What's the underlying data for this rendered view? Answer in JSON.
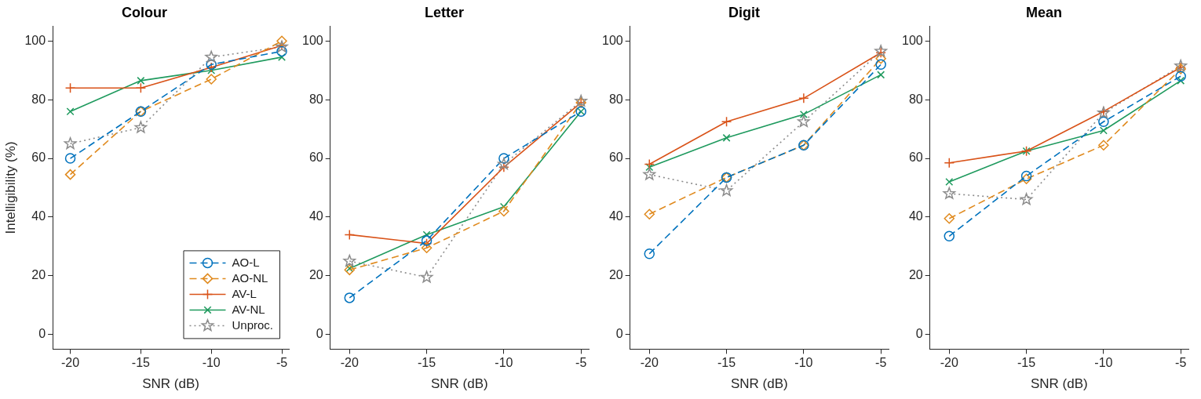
{
  "chart_data": [
    {
      "type": "line",
      "title": "Colour",
      "xlabel": "SNR (dB)",
      "ylabel": "Intelligibility (%)",
      "x": [
        -20,
        -15,
        -10,
        -5
      ],
      "xlim": [
        -21.25,
        -4.5
      ],
      "xticks": [
        -20,
        -15,
        -10,
        -5
      ],
      "ylim": [
        -5,
        105
      ],
      "yticks": [
        0,
        20,
        40,
        60,
        80,
        100
      ],
      "legend": "bottom right",
      "series": [
        {
          "name": "AO-L",
          "color": "#0072bd",
          "marker": "circle",
          "line_style": "dashed",
          "values": [
            60,
            76,
            92,
            96.5
          ]
        },
        {
          "name": "AO-NL",
          "color": "#e08a1e",
          "marker": "diamond",
          "line_style": "dashed",
          "values": [
            54.5,
            76,
            87,
            100
          ]
        },
        {
          "name": "AV-L",
          "color": "#d95319",
          "marker": "cross",
          "line_style": "solid",
          "values": [
            84,
            84,
            91,
            98.5
          ]
        },
        {
          "name": "AV-NL",
          "color": "#1f9a5e",
          "marker": "x",
          "line_style": "solid",
          "values": [
            76,
            86.5,
            90,
            94.5
          ]
        },
        {
          "name": "Unproc.",
          "color": "#8c8c8c",
          "marker": "star",
          "line_style": "dotted",
          "values": [
            65,
            70.5,
            94.5,
            98
          ]
        }
      ]
    },
    {
      "type": "line",
      "title": "Letter",
      "xlabel": "SNR (dB)",
      "x": [
        -20,
        -15,
        -10,
        -5
      ],
      "xlim": [
        -21.25,
        -4.5
      ],
      "xticks": [
        -20,
        -15,
        -10,
        -5
      ],
      "ylim": [
        -5,
        105
      ],
      "yticks": [
        0,
        20,
        40,
        60,
        80,
        100
      ],
      "series": [
        {
          "color": "#0072bd",
          "marker": "circle",
          "line_style": "dashed",
          "values": [
            12.5,
            32,
            60,
            76
          ]
        },
        {
          "color": "#e08a1e",
          "marker": "diamond",
          "line_style": "dashed",
          "values": [
            22,
            29.5,
            42,
            79
          ]
        },
        {
          "color": "#d95319",
          "marker": "cross",
          "line_style": "solid",
          "values": [
            34,
            31,
            57,
            79
          ]
        },
        {
          "color": "#1f9a5e",
          "marker": "x",
          "line_style": "solid",
          "values": [
            22.5,
            34,
            43.5,
            76
          ]
        },
        {
          "color": "#8c8c8c",
          "marker": "star",
          "line_style": "dotted",
          "values": [
            25,
            19.5,
            58,
            79.5
          ]
        }
      ]
    },
    {
      "type": "line",
      "title": "Digit",
      "xlabel": "SNR (dB)",
      "x": [
        -20,
        -15,
        -10,
        -5
      ],
      "xlim": [
        -21.25,
        -4.5
      ],
      "xticks": [
        -20,
        -15,
        -10,
        -5
      ],
      "ylim": [
        -5,
        105
      ],
      "yticks": [
        0,
        20,
        40,
        60,
        80,
        100
      ],
      "series": [
        {
          "color": "#0072bd",
          "marker": "circle",
          "line_style": "dashed",
          "values": [
            27.5,
            53.5,
            64.5,
            92
          ]
        },
        {
          "color": "#e08a1e",
          "marker": "diamond",
          "line_style": "dashed",
          "values": [
            41,
            53.5,
            64.5,
            94
          ]
        },
        {
          "color": "#d95319",
          "marker": "cross",
          "line_style": "solid",
          "values": [
            58,
            72.5,
            80.5,
            96
          ]
        },
        {
          "color": "#1f9a5e",
          "marker": "x",
          "line_style": "solid",
          "values": [
            57,
            67,
            75,
            88.5
          ]
        },
        {
          "color": "#8c8c8c",
          "marker": "star",
          "line_style": "dotted",
          "values": [
            54.5,
            49,
            72.5,
            96.5
          ]
        }
      ]
    },
    {
      "type": "line",
      "title": "Mean",
      "xlabel": "SNR (dB)",
      "x": [
        -20,
        -15,
        -10,
        -5
      ],
      "xlim": [
        -21.25,
        -4.5
      ],
      "xticks": [
        -20,
        -15,
        -10,
        -5
      ],
      "ylim": [
        -5,
        105
      ],
      "yticks": [
        0,
        20,
        40,
        60,
        80,
        100
      ],
      "series": [
        {
          "color": "#0072bd",
          "marker": "circle",
          "line_style": "dashed",
          "values": [
            33.5,
            54,
            72.5,
            88
          ]
        },
        {
          "color": "#e08a1e",
          "marker": "diamond",
          "line_style": "dashed",
          "values": [
            39.5,
            53,
            64.5,
            90.5
          ]
        },
        {
          "color": "#d95319",
          "marker": "cross",
          "line_style": "solid",
          "values": [
            58.5,
            62.5,
            76,
            91
          ]
        },
        {
          "color": "#1f9a5e",
          "marker": "x",
          "line_style": "solid",
          "values": [
            52,
            62.5,
            69.5,
            86.5
          ]
        },
        {
          "color": "#8c8c8c",
          "marker": "star",
          "line_style": "dotted",
          "values": [
            48,
            46,
            75.5,
            91.5
          ]
        }
      ]
    }
  ]
}
